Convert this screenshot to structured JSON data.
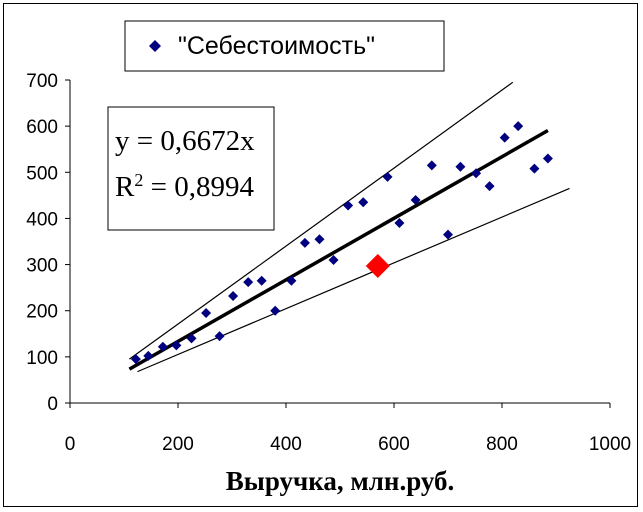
{
  "chart_data": {
    "type": "scatter",
    "title": "",
    "xlabel": "Выручка, млн.руб.",
    "ylabel": "",
    "xlim": [
      0,
      1000
    ],
    "ylim": [
      0,
      700
    ],
    "xticks": [
      "0",
      "200",
      "400",
      "600",
      "800",
      "1000"
    ],
    "yticks": [
      "0",
      "100",
      "200",
      "300",
      "400",
      "500",
      "600",
      "700"
    ],
    "legend": {
      "label": "\"Себестоимость\"",
      "position": "top-center"
    },
    "series": [
      {
        "name": "\"Себестоимость\"",
        "color": "#000080",
        "marker": "diamond",
        "points": [
          [
            122,
            95
          ],
          [
            145,
            102
          ],
          [
            172,
            122
          ],
          [
            197,
            125
          ],
          [
            225,
            140
          ],
          [
            252,
            195
          ],
          [
            277,
            145
          ],
          [
            302,
            232
          ],
          [
            330,
            262
          ],
          [
            355,
            265
          ],
          [
            380,
            200
          ],
          [
            410,
            265
          ],
          [
            435,
            347
          ],
          [
            462,
            355
          ],
          [
            488,
            310
          ],
          [
            515,
            428
          ],
          [
            543,
            435
          ],
          [
            588,
            490
          ],
          [
            610,
            390
          ],
          [
            640,
            440
          ],
          [
            670,
            515
          ],
          [
            700,
            365
          ],
          [
            723,
            512
          ],
          [
            752,
            498
          ],
          [
            777,
            470
          ],
          [
            805,
            575
          ],
          [
            830,
            600
          ],
          [
            860,
            508
          ],
          [
            885,
            530
          ]
        ]
      }
    ],
    "highlight_point": {
      "x": 570,
      "y": 297,
      "color": "#ff0000"
    },
    "trendline": {
      "slope": 0.6672,
      "x_range": [
        110,
        885
      ]
    },
    "bound_lines": [
      {
        "x1": 110,
        "y1": 95,
        "x2": 820,
        "y2": 695
      },
      {
        "x1": 125,
        "y1": 68,
        "x2": 925,
        "y2": 465
      }
    ],
    "equation": {
      "line1": "y = 0,6672x",
      "r2_prefix": "R",
      "r2_exp": "2",
      "r2_suffix": " = 0,8994"
    },
    "grid": false
  }
}
